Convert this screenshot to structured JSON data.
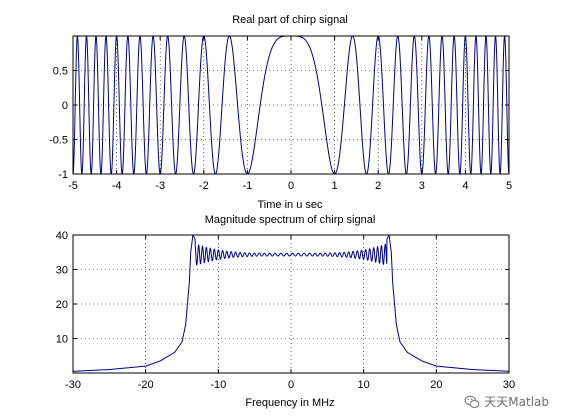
{
  "colors": {
    "line": "#00008b",
    "grid": "#000000",
    "axis": "#000000"
  },
  "chart_data": [
    {
      "type": "line",
      "title": "Real part of chirp signal",
      "xlabel": "Time in u sec",
      "ylabel": "",
      "xlim": [
        -5,
        5
      ],
      "ylim": [
        -1,
        1
      ],
      "xticks": [
        "-5",
        "-4",
        "-3",
        "-2",
        "-1",
        "0",
        "1",
        "2",
        "3",
        "4",
        "5"
      ],
      "yticks": [
        "-1",
        "-0.5",
        "0",
        "0.5"
      ],
      "grid": true,
      "signal": {
        "form": "cos(pi*k*t^2)",
        "k": 1.0,
        "amplitude": 1,
        "t_range": [
          -5,
          5
        ],
        "unit": "u sec"
      }
    },
    {
      "type": "line",
      "title": "Magnitude spectrum of chirp signal",
      "xlabel": "Frequency in MHz",
      "ylabel": "",
      "xlim": [
        -30,
        30
      ],
      "ylim": [
        0,
        40
      ],
      "xticks": [
        "-30",
        "-20",
        "-10",
        "0",
        "10",
        "20",
        "30"
      ],
      "yticks": [
        "10",
        "20",
        "30",
        "40"
      ],
      "grid": true,
      "x": [
        -30,
        -25,
        -20,
        -18,
        -16,
        -15,
        -14.5,
        -14,
        -13.8,
        -13.5,
        -13,
        -12.5,
        -12,
        -10,
        -5,
        0,
        5,
        10,
        12,
        12.5,
        13,
        13.5,
        13.8,
        14,
        14.5,
        15,
        16,
        18,
        20,
        25,
        30
      ],
      "y": [
        0.5,
        1,
        2,
        3.5,
        6,
        9,
        14,
        26,
        35,
        40,
        38,
        33,
        37,
        34,
        34,
        34.5,
        34,
        34,
        37,
        33,
        38,
        40,
        35,
        26,
        14,
        9,
        6,
        3.5,
        2,
        1,
        0.5
      ]
    }
  ],
  "watermark": {
    "text": "天天Matlab",
    "icon": "wechat-icon"
  }
}
